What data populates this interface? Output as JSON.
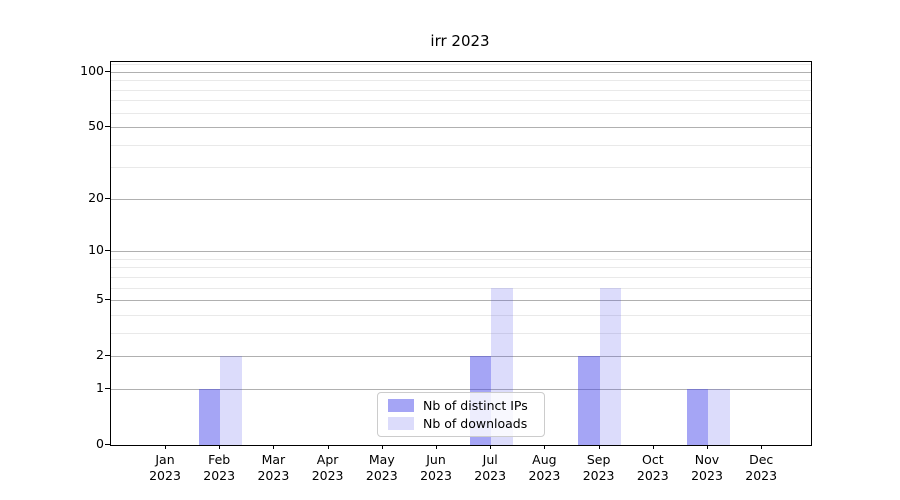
{
  "figure": {
    "background": "#ffffff",
    "axis_color": "#000000",
    "grid_major_color": "#b0b0b0",
    "grid_minor_color": "#e9e9e9"
  },
  "chart_data": {
    "type": "bar",
    "title": "irr 2023",
    "categories": [
      "Jan 2023",
      "Feb 2023",
      "Mar 2023",
      "Apr 2023",
      "May 2023",
      "Jun 2023",
      "Jul 2023",
      "Aug 2023",
      "Sep 2023",
      "Oct 2023",
      "Nov 2023",
      "Dec 2023"
    ],
    "series": [
      {
        "name": "Nb of distinct IPs",
        "color": "rgba(63,63,233,0.47)",
        "values": [
          0,
          1,
          0,
          0,
          0,
          0,
          2,
          0,
          2,
          0,
          1,
          0
        ]
      },
      {
        "name": "Nb of downloads",
        "color": "rgba(63,63,233,0.18)",
        "values": [
          0,
          2,
          0,
          0,
          0,
          0,
          6,
          0,
          6,
          0,
          1,
          0
        ]
      }
    ],
    "xlabel": "",
    "ylabel": "",
    "y_scale": "log1p",
    "ylim": [
      0,
      112
    ],
    "y_major_ticks": [
      0,
      1,
      2,
      5,
      10,
      20,
      50,
      100
    ],
    "y_minor_ticks": [
      3,
      4,
      6,
      7,
      8,
      9,
      30,
      40,
      60,
      70,
      80,
      90,
      110
    ],
    "grid": "on",
    "legend_position": "lower center"
  }
}
